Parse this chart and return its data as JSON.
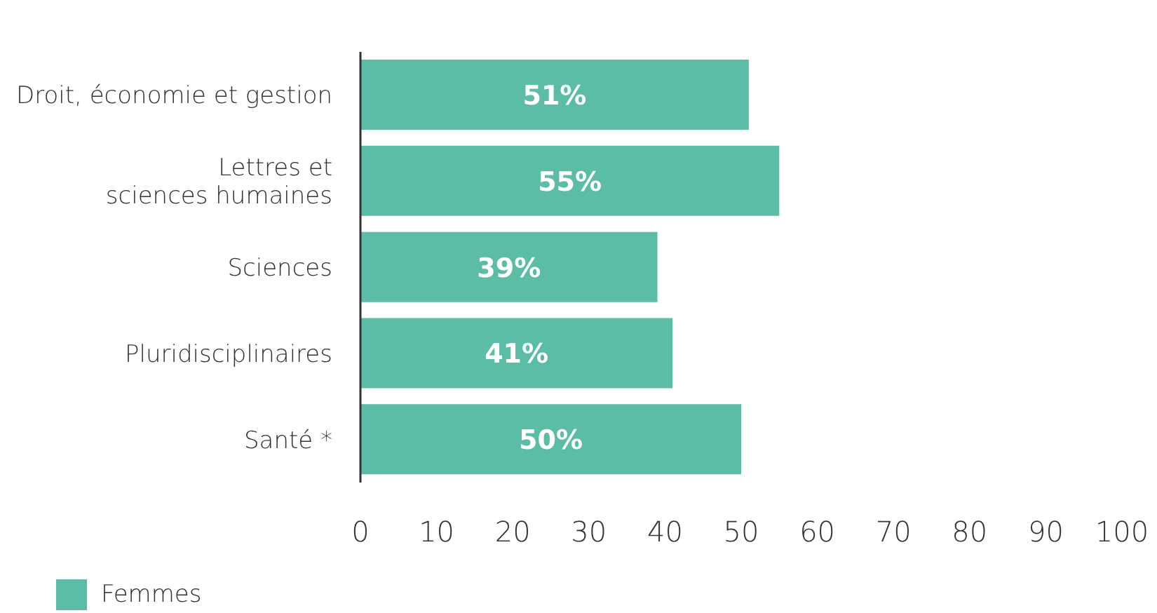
{
  "chart_data": {
    "type": "bar",
    "orientation": "horizontal",
    "categories": [
      "Droit, économie et gestion",
      "Lettres et sciences humaines",
      "Sciences",
      "Pluridisciplinaires",
      "Santé *"
    ],
    "series": [
      {
        "name": "Femmes",
        "color": "#5bbda6",
        "values": [
          51,
          55,
          39,
          41,
          50
        ],
        "value_labels": [
          "51%",
          "55%",
          "39%",
          "41%",
          "50%"
        ]
      }
    ],
    "xlim": [
      0,
      100
    ],
    "xticks": [
      0,
      10,
      20,
      30,
      40,
      50,
      60,
      70,
      80,
      90,
      100
    ],
    "grid": false,
    "legend": "bottom left"
  }
}
